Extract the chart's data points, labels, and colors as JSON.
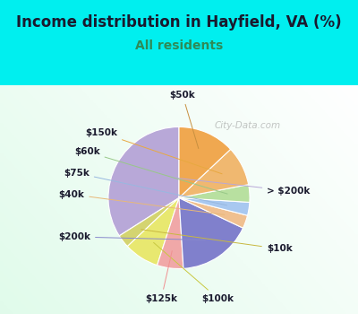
{
  "title": "Income distribution in Hayfield, VA (%)",
  "subtitle": "All residents",
  "title_color": "#1a1a2e",
  "subtitle_color": "#2e8b57",
  "bg_color": "#00efef",
  "watermark": "City-Data.com",
  "labels": [
    "> $200k",
    "$10k",
    "$100k",
    "$125k",
    "$200k",
    "$40k",
    "$75k",
    "$60k",
    "$150k",
    "$50k"
  ],
  "values": [
    34,
    3,
    8,
    6,
    17,
    3,
    3,
    4,
    9,
    13
  ],
  "colors": [
    "#b8a8d8",
    "#d4d470",
    "#e8e870",
    "#f0a8a8",
    "#8080cc",
    "#f0c090",
    "#a8c8f0",
    "#b8e0a0",
    "#f0b870",
    "#f0a850"
  ],
  "startangle": 90,
  "label_fontsize": 7.5,
  "title_fontsize": 12,
  "subtitle_fontsize": 10
}
